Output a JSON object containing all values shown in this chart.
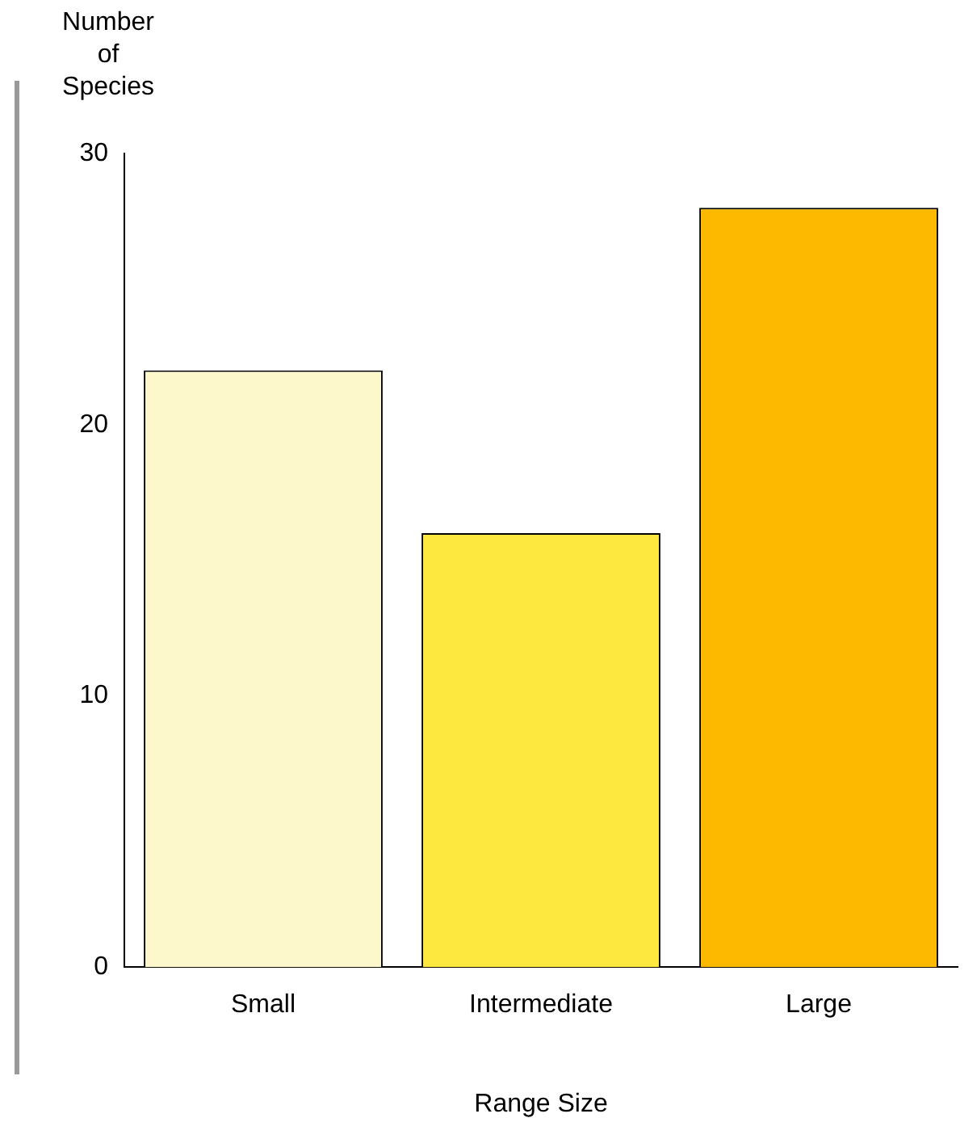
{
  "chart_data": {
    "type": "bar",
    "ylabel": "Number\nof\nSpecies",
    "xlabel": "Range Size",
    "categories": [
      "Small",
      "Intermediate",
      "Large"
    ],
    "values": [
      22,
      16,
      28
    ],
    "colors": [
      "#fdf7cc",
      "#fde83f",
      "#fdb900"
    ],
    "ylim": [
      0,
      30
    ],
    "yticks": [
      0,
      10,
      20,
      30
    ],
    "grid": false,
    "legend": false
  }
}
